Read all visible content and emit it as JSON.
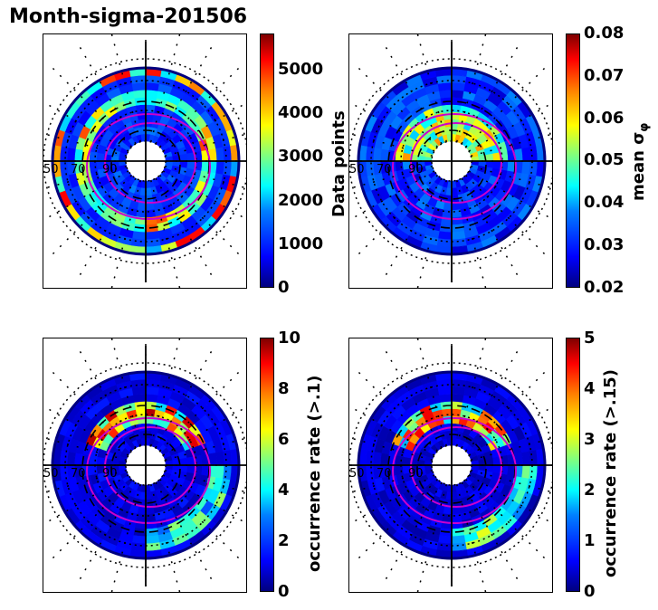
{
  "title": "Month-sigma-201506",
  "chart_data": [
    {
      "type": "heatmap",
      "projection": "polar",
      "position": "top-left",
      "colorbar_label": "Data points",
      "colorbar_ticks": [
        "0",
        "1000",
        "2000",
        "3000",
        "4000",
        "5000"
      ],
      "vmin": 0,
      "vmax": 5800,
      "colormap": "jet",
      "latitude_labels": [
        "50",
        "70",
        "90"
      ]
    },
    {
      "type": "heatmap",
      "projection": "polar",
      "position": "top-right",
      "colorbar_label": "mean σφ",
      "colorbar_label_main": "mean σ",
      "colorbar_label_sub": "φ",
      "colorbar_ticks": [
        "0.02",
        "0.03",
        "0.04",
        "0.05",
        "0.06",
        "0.07",
        "0.08"
      ],
      "vmin": 0.02,
      "vmax": 0.08,
      "colormap": "jet",
      "latitude_labels": [
        "50",
        "70",
        "90"
      ]
    },
    {
      "type": "heatmap",
      "projection": "polar",
      "position": "bottom-left",
      "colorbar_label": "occurrence rate (>.1)",
      "colorbar_ticks": [
        "0",
        "2",
        "4",
        "6",
        "8",
        "10"
      ],
      "vmin": 0,
      "vmax": 10,
      "colormap": "jet",
      "latitude_labels": [
        "50",
        "70",
        "90"
      ]
    },
    {
      "type": "heatmap",
      "projection": "polar",
      "position": "bottom-right",
      "colorbar_label": "occurrence rate (>.15)",
      "colorbar_ticks": [
        "0",
        "1",
        "2",
        "3",
        "4",
        "5"
      ],
      "vmin": 0,
      "vmax": 5,
      "colormap": "jet",
      "latitude_labels": [
        "50",
        "70",
        "90"
      ]
    }
  ]
}
